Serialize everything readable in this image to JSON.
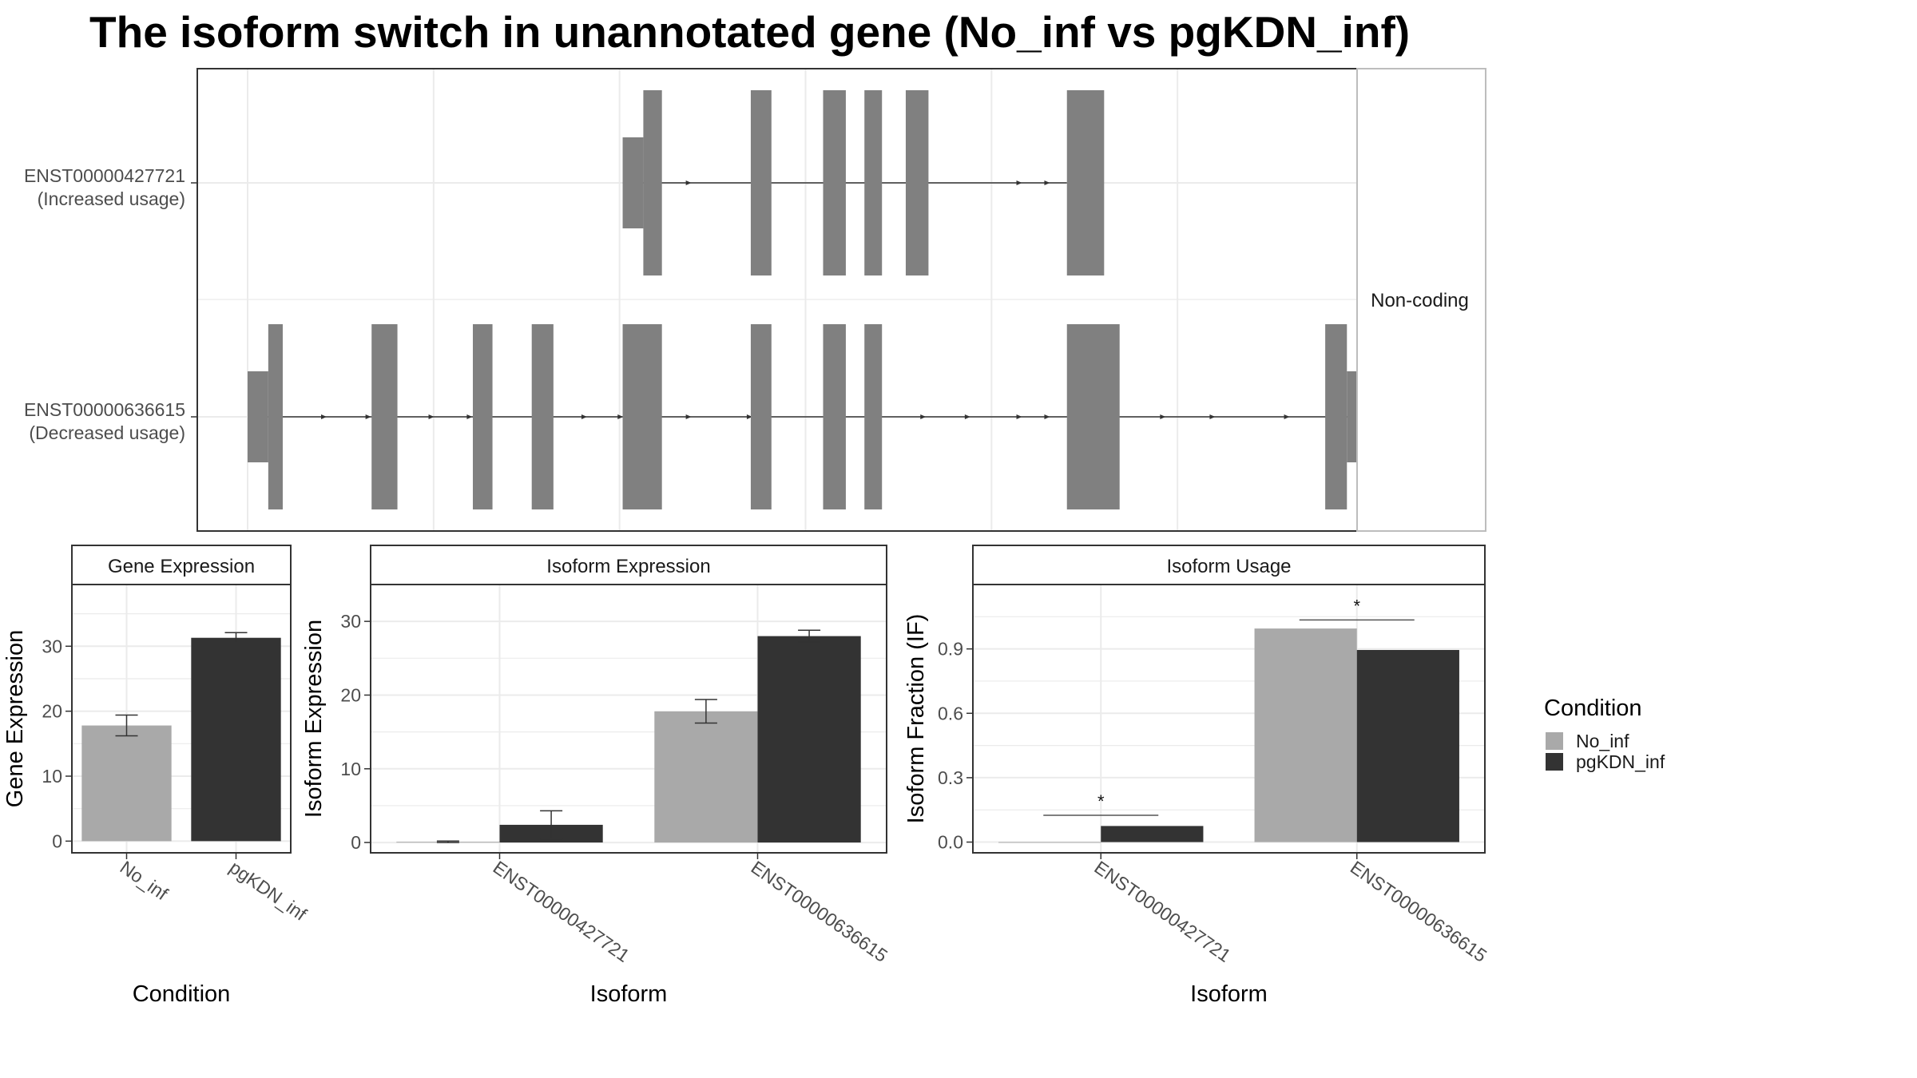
{
  "title": "The isoform switch in unannotated gene (No_inf vs pgKDN_inf)",
  "colors": {
    "no_inf": "#a9a9a9",
    "pgkdn_inf": "#333333",
    "exon": "#808080",
    "grid": "#ebebeb",
    "strip_fill": "#ffffff",
    "panel_border": "#333333"
  },
  "chart_data": [
    {
      "type": "gene-structure",
      "facet_label": "Non-coding",
      "x_range_relative": [
        0,
        1080
      ],
      "grid_breaks": [
        0,
        180,
        360,
        540,
        720,
        900,
        1080
      ],
      "transcripts": [
        {
          "id": "ENST00000427721",
          "label": "ENST00000427721",
          "sublabel": "(Increased usage)",
          "intron_span": [
            363,
            793
          ],
          "exons": [
            [
              363,
              383
            ],
            [
              383,
              401
            ],
            [
              487,
              507
            ],
            [
              557,
              579
            ],
            [
              597,
              614
            ],
            [
              637,
              659
            ],
            [
              793,
              829
            ]
          ],
          "thin_exons": [
            [
              363,
              383
            ]
          ],
          "arrows": [
            428,
            565,
            748,
            775
          ]
        },
        {
          "id": "ENST00000636615",
          "label": "ENST00000636615",
          "sublabel": "(Decreased usage)",
          "intron_span": [
            0,
            1080
          ],
          "exons": [
            [
              0,
              20
            ],
            [
              20,
              34
            ],
            [
              120,
              145
            ],
            [
              218,
              237
            ],
            [
              275,
              296
            ],
            [
              363,
              401
            ],
            [
              487,
              507
            ],
            [
              557,
              579
            ],
            [
              597,
              614
            ],
            [
              793,
              844
            ],
            [
              1043,
              1064
            ],
            [
              1064,
              1102
            ]
          ],
          "thin_exons": [
            [
              0,
              20
            ],
            [
              1064,
              1102
            ]
          ],
          "arrows": [
            75,
            118,
            179,
            216,
            327,
            362,
            428,
            487,
            655,
            698,
            748,
            775,
            834,
            887,
            935,
            1007
          ]
        }
      ]
    },
    {
      "type": "bar",
      "facet_label": "Gene Expression",
      "xlabel": "Condition",
      "ylabel": "Gene Expression",
      "categories": [
        "No_inf",
        "pgKDN_inf"
      ],
      "values": [
        17.8,
        31.3
      ],
      "errors": [
        [
          16.2,
          19.4
        ],
        [
          30.5,
          32.1
        ]
      ],
      "ylim": [
        -1.8,
        39.5
      ],
      "yticks": [
        0,
        10,
        20,
        30
      ],
      "ytick_labels": [
        "0",
        "10",
        "20",
        "30"
      ]
    },
    {
      "type": "bar",
      "facet_label": "Isoform Expression",
      "xlabel": "Isoform",
      "ylabel": "Isoform Expression",
      "categories": [
        "ENST00000427721",
        "ENST00000636615"
      ],
      "series": [
        {
          "name": "No_inf",
          "values": [
            0.1,
            17.8
          ],
          "errors": [
            [
              0,
              0.2
            ],
            [
              16.2,
              19.4
            ]
          ]
        },
        {
          "name": "pgKDN_inf",
          "values": [
            2.4,
            28.0
          ],
          "errors": [
            [
              0.5,
              4.3
            ],
            [
              27.2,
              28.8
            ]
          ]
        }
      ],
      "ylim": [
        -1.4,
        35.0
      ],
      "yticks": [
        0,
        10,
        20,
        30
      ],
      "ytick_labels": [
        "0",
        "10",
        "20",
        "30"
      ]
    },
    {
      "type": "bar",
      "facet_label": "Isoform Usage",
      "xlabel": "Isoform",
      "ylabel": "Isoform Fraction (IF)",
      "categories": [
        "ENST00000427721",
        "ENST00000636615"
      ],
      "series": [
        {
          "name": "No_inf",
          "values": [
            0.0,
            0.995
          ]
        },
        {
          "name": "pgKDN_inf",
          "values": [
            0.075,
            0.895
          ]
        }
      ],
      "significance": [
        {
          "category": "ENST00000427721",
          "label": "*",
          "y": 0.125
        },
        {
          "category": "ENST00000636615",
          "label": "*",
          "y": 1.035
        }
      ],
      "ylim": [
        -0.05,
        1.2
      ],
      "yticks": [
        0.0,
        0.3,
        0.6,
        0.9
      ],
      "ytick_labels": [
        "0.0",
        "0.3",
        "0.6",
        "0.9"
      ]
    }
  ],
  "legend": {
    "title": "Condition",
    "entries": [
      {
        "label": "No_inf",
        "color": "#a9a9a9"
      },
      {
        "label": "pgKDN_inf",
        "color": "#333333"
      }
    ]
  }
}
